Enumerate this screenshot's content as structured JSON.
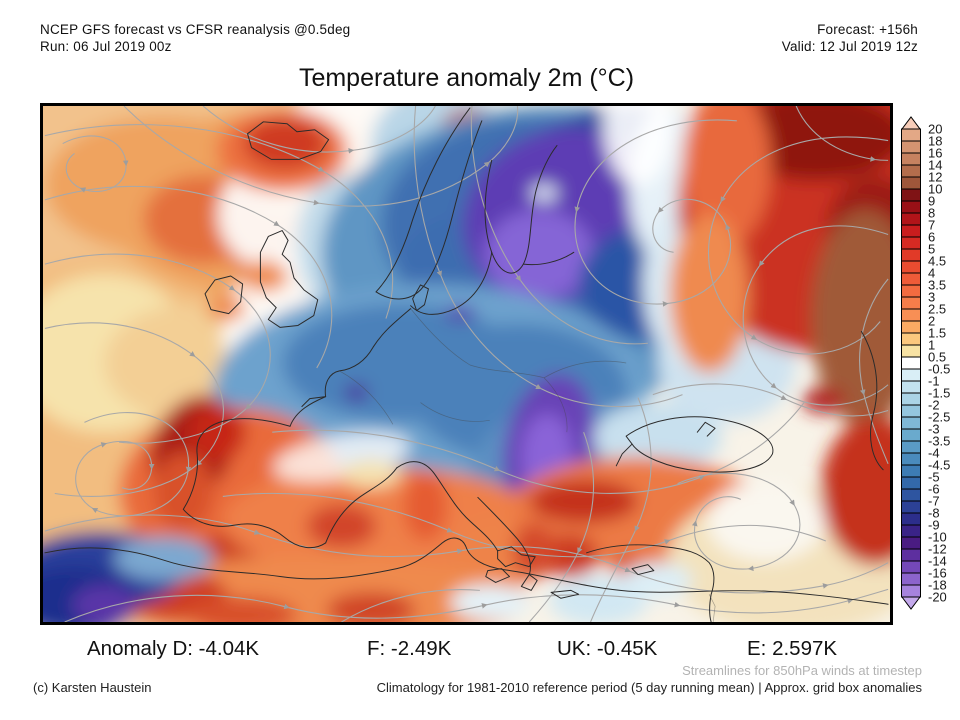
{
  "header": {
    "left_line1": "NCEP GFS forecast vs CFSR reanalysis @0.5deg",
    "left_line2": "Run: 06 Jul 2019 00z",
    "right_line1": "Forecast: +156h",
    "right_line2": "Valid: 12 Jul 2019 12z"
  },
  "title": "Temperature anomaly 2m (°C)",
  "colorbar": {
    "tick_labels": [
      "20",
      "18",
      "16",
      "14",
      "12",
      "10",
      "9",
      "8",
      "7",
      "6",
      "5",
      "4.5",
      "4",
      "3.5",
      "3",
      "2.5",
      "2",
      "1.5",
      "1",
      "0.5",
      "-0.5",
      "-1",
      "-1.5",
      "-2",
      "-2.5",
      "-3",
      "-3.5",
      "-4",
      "-4.5",
      "-5",
      "-6",
      "-7",
      "-8",
      "-9",
      "-10",
      "-12",
      "-14",
      "-16",
      "-18",
      "-20"
    ],
    "cell_colors": [
      "#e3a886",
      "#d49471",
      "#c68260",
      "#b36d4c",
      "#9e563a",
      "#7f1315",
      "#991016",
      "#b11419",
      "#c91d1e",
      "#d62a23",
      "#e13a28",
      "#e94c30",
      "#ef5b38",
      "#f36b40",
      "#f67d4a",
      "#f88f55",
      "#fbaa63",
      "#fcc87e",
      "#f8e3a4",
      "#ffffff",
      "#d9eef6",
      "#c2e2ef",
      "#abd4e6",
      "#94c6de",
      "#7fb8d6",
      "#6aaacd",
      "#5a9bc5",
      "#4a8bbc",
      "#3d7cb4",
      "#3369aa",
      "#2e55a0",
      "#2c4196",
      "#2c2e8b",
      "#3a2387",
      "#4a1c82",
      "#5d2f9f",
      "#7448b8",
      "#8c64cc",
      "#a683de"
    ],
    "above_max_color": "#f7cdb9",
    "below_min_color": "#c4a9ec"
  },
  "stats": {
    "items": [
      {
        "label": "Anomaly D:",
        "value": "-4.04K"
      },
      {
        "label": "F:",
        "value": "-2.49K"
      },
      {
        "label": "UK:",
        "value": "-0.45K"
      },
      {
        "label": "E:",
        "value": "2.597K"
      }
    ]
  },
  "footer": {
    "streamlines_note": "Streamlines for 850hPa winds at timestep",
    "climatology_note": "Climatology for 1981-2010 reference period (5 day running mean) | Approx. grid box anomalies",
    "copyright": "(c) Karsten Haustein"
  },
  "map": {
    "streamline_color": "#a8a8a8",
    "coastline_color": "#2b2b2b",
    "warm_accent": "#e2572f",
    "cold_accent": "#3d6fb2",
    "cold_extreme_accent": "#8a63d8",
    "warm_extreme_accent": "#7f1315"
  }
}
